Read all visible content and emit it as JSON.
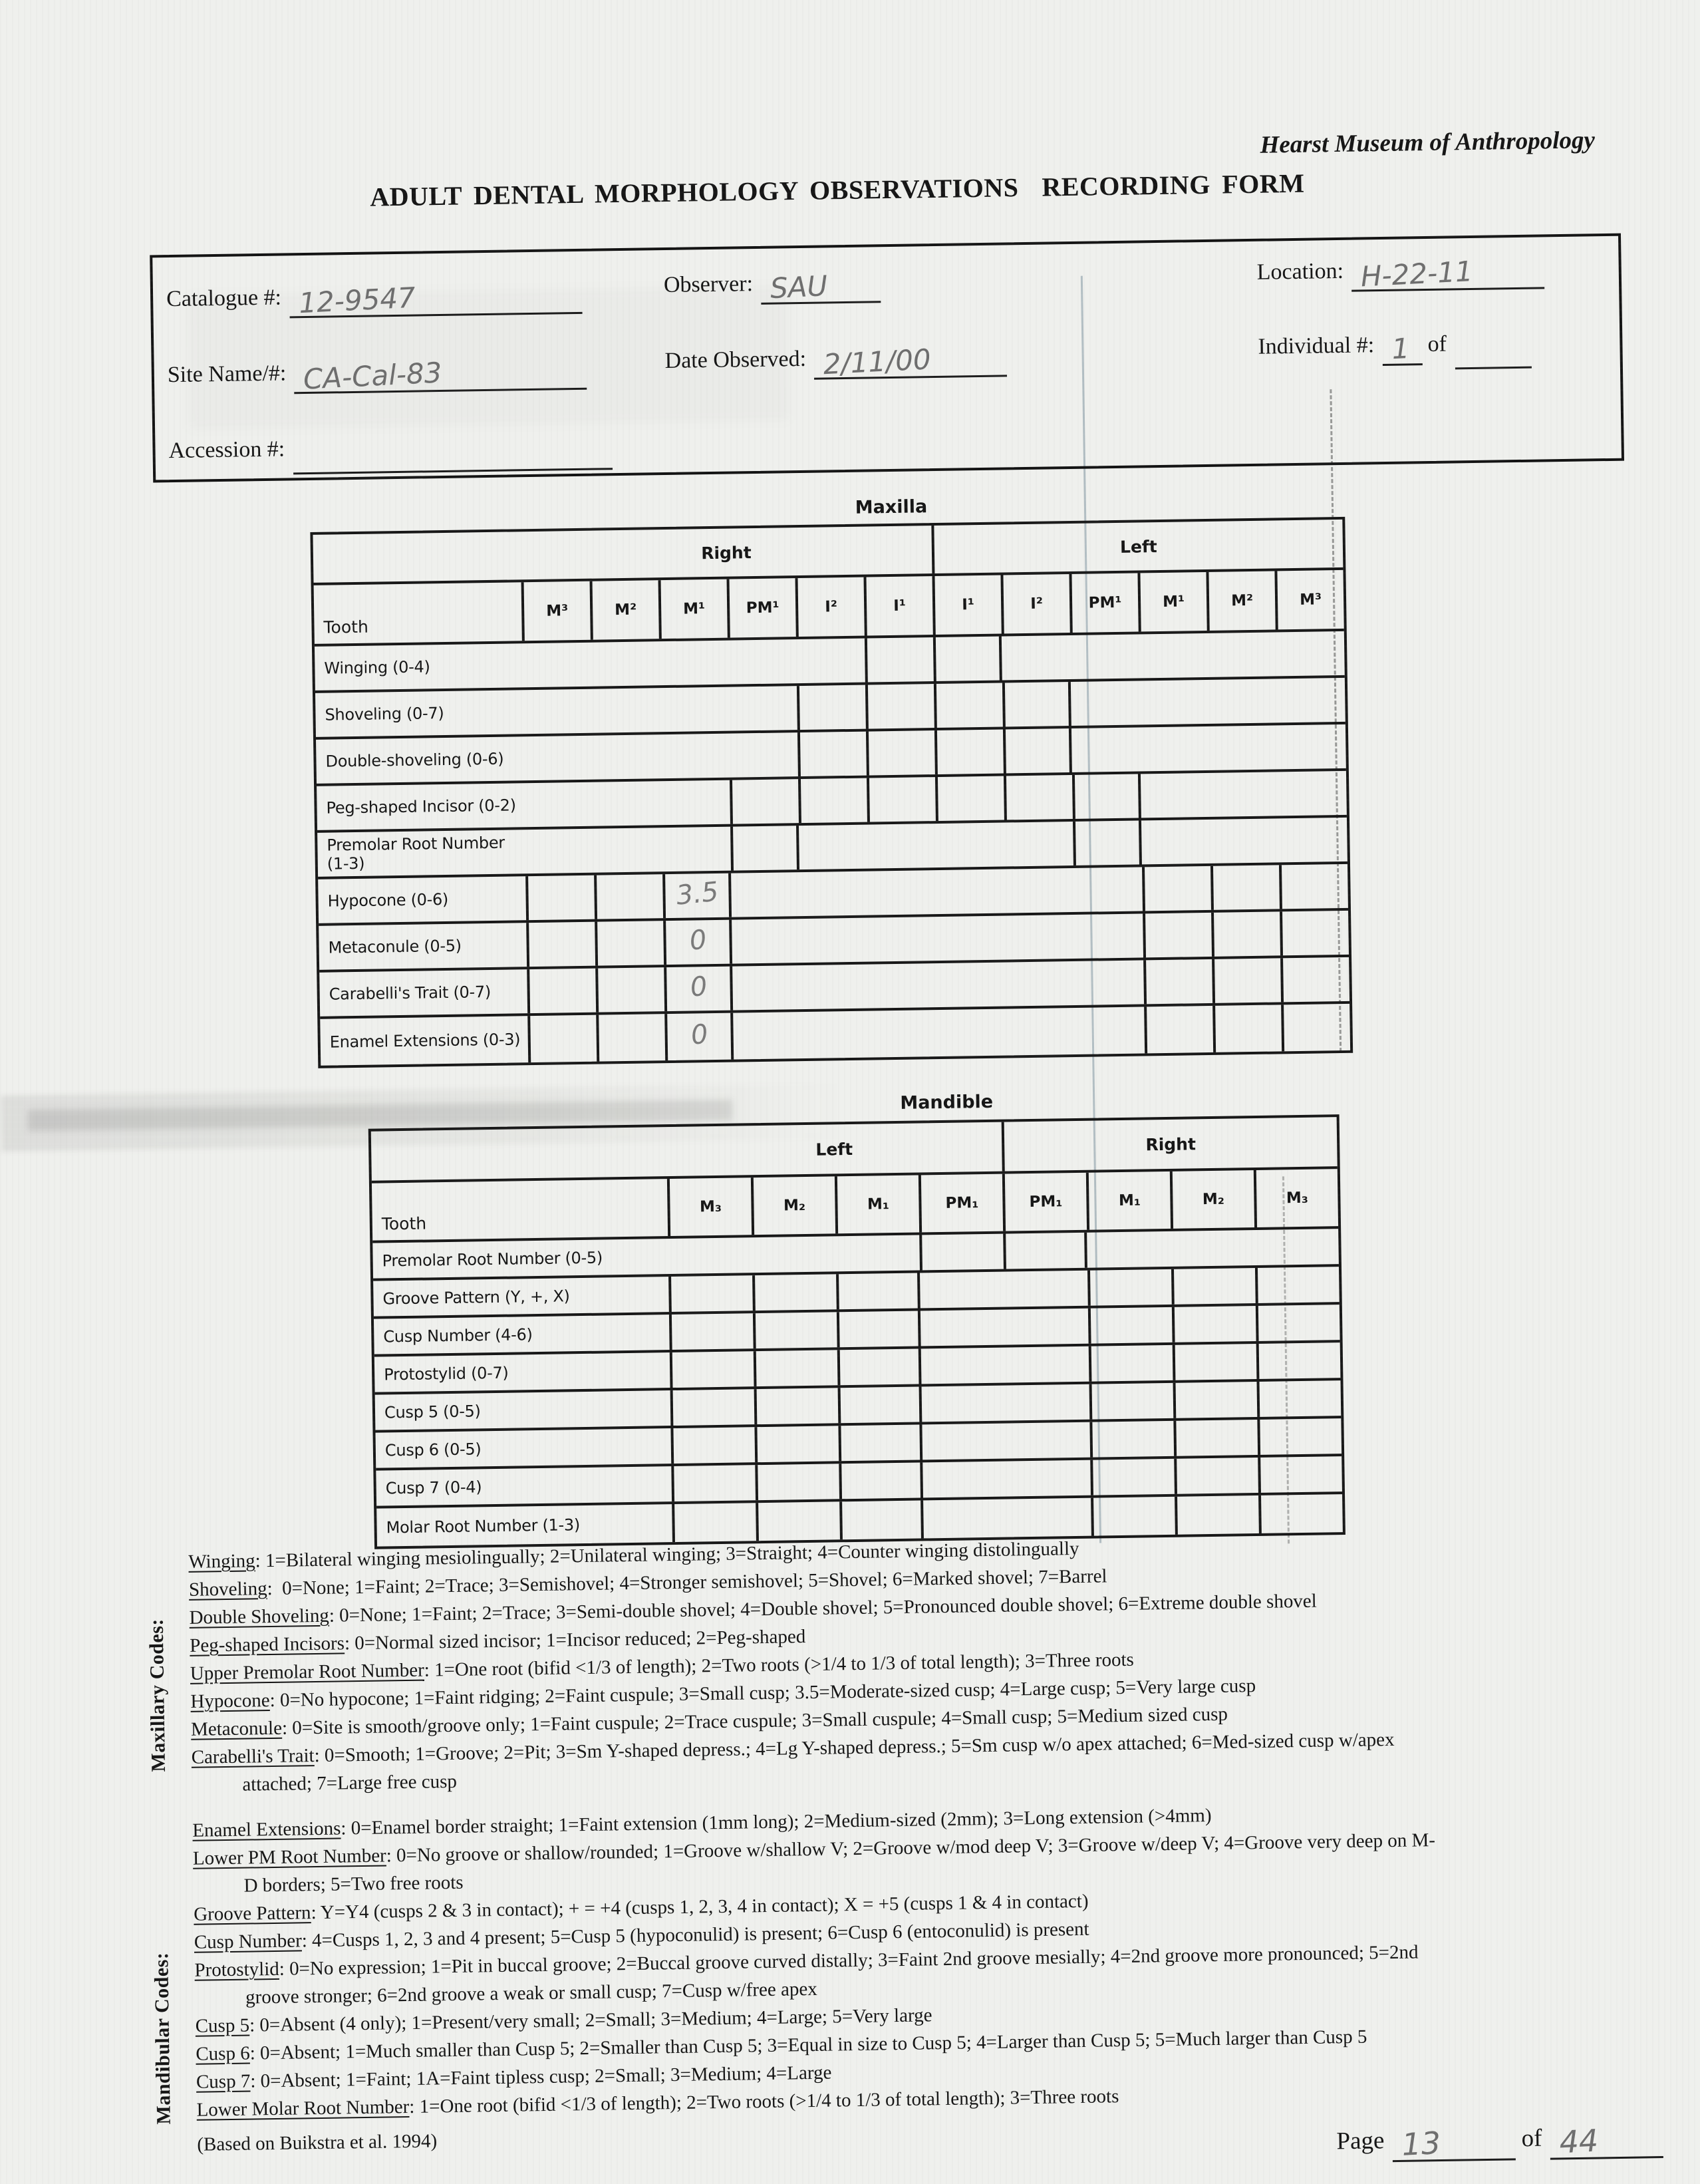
{
  "page": {
    "museum": "Hearst Museum of Anthropology",
    "title": "ADULT DENTAL MORPHOLOGY OBSERVATIONS  RECORDING FORM",
    "footer_source": "(Based on Buikstra et al. 1994)",
    "page_label": "Page",
    "page_of": "of",
    "page_number": "13",
    "page_total": "44"
  },
  "info_box": {
    "fields": [
      {
        "label": "Catalogue #:",
        "value": "12-9547"
      },
      {
        "label": "Observer:",
        "value": "SAU"
      },
      {
        "label": "Location:",
        "value": "H-22-11"
      },
      {
        "label": "Site Name/#:",
        "value": "CA-Cal-83"
      },
      {
        "label": "Date Observed:",
        "value": "2/11/00"
      },
      {
        "label": "Individual #:",
        "value": "1",
        "suffix": "of",
        "value2": ""
      },
      {
        "label": "Accession #:",
        "value": ""
      }
    ]
  },
  "maxilla": {
    "title": "Maxilla",
    "side_headers": [
      "Right",
      "Left"
    ],
    "tooth_label": "Tooth",
    "columns": [
      "M³",
      "M²",
      "M¹",
      "PM¹",
      "I²",
      "I¹",
      "I¹",
      "I²",
      "PM¹",
      "M¹",
      "M²",
      "M³"
    ],
    "rows": [
      {
        "label": "Winging (0-4)",
        "active": [
          5,
          6
        ],
        "values": {}
      },
      {
        "label": "Shoveling (0-7)",
        "active": [
          4,
          5,
          6,
          7
        ],
        "values": {}
      },
      {
        "label": "Double-shoveling (0-6)",
        "active": [
          4,
          5,
          6,
          7
        ],
        "values": {}
      },
      {
        "label": "Peg-shaped Incisor (0-2)",
        "active": [
          3,
          4,
          5,
          6,
          7,
          8
        ],
        "values": {}
      },
      {
        "label": "Premolar Root Number (1-3)",
        "active": [
          3,
          8
        ],
        "values": {}
      },
      {
        "label": "Hypocone (0-6)",
        "active": [
          0,
          1,
          2,
          9,
          10,
          11
        ],
        "values": {
          "2": "3.5"
        }
      },
      {
        "label": "Metaconule (0-5)",
        "active": [
          0,
          1,
          2,
          9,
          10,
          11
        ],
        "values": {
          "2": "0"
        }
      },
      {
        "label": "Carabelli's Trait (0-7)",
        "active": [
          0,
          1,
          2,
          9,
          10,
          11
        ],
        "values": {
          "2": "0"
        }
      },
      {
        "label": "Enamel Extensions (0-3)",
        "active": [
          0,
          1,
          2,
          9,
          10,
          11
        ],
        "values": {
          "2": "0"
        }
      }
    ]
  },
  "mandible": {
    "title": "Mandible",
    "side_headers": [
      "Left",
      "Right"
    ],
    "tooth_label": "Tooth",
    "columns": [
      "M₃",
      "M₂",
      "M₁",
      "PM₁",
      "PM₁",
      "M₁",
      "M₂",
      "M₃"
    ],
    "rows": [
      {
        "label": "Premolar Root Number (0-5)",
        "active": [
          3,
          4
        ],
        "values": {}
      },
      {
        "label": "Groove Pattern (Y, +, X)",
        "active": [
          0,
          1,
          2,
          5,
          6,
          7
        ],
        "values": {}
      },
      {
        "label": "Cusp Number (4-6)",
        "active": [
          0,
          1,
          2,
          5,
          6,
          7
        ],
        "values": {}
      },
      {
        "label": "Protostylid (0-7)",
        "active": [
          0,
          1,
          2,
          5,
          6,
          7
        ],
        "values": {}
      },
      {
        "label": "Cusp 5 (0-5)",
        "active": [
          0,
          1,
          2,
          5,
          6,
          7
        ],
        "values": {}
      },
      {
        "label": "Cusp 6 (0-5)",
        "active": [
          0,
          1,
          2,
          5,
          6,
          7
        ],
        "values": {}
      },
      {
        "label": "Cusp 7 (0-4)",
        "active": [
          0,
          1,
          2,
          5,
          6,
          7
        ],
        "values": {}
      },
      {
        "label": "Molar Root Number (1-3)",
        "active": [
          0,
          1,
          2,
          5,
          6,
          7
        ],
        "values": {}
      }
    ]
  },
  "maxillary_codes": {
    "label": "Maxillary Codes:",
    "lines": [
      {
        "term": "Winging",
        "text": ": 1=Bilateral winging mesiolingually; 2=Unilateral winging; 3=Straight; 4=Counter winging distolingually"
      },
      {
        "term": "Shoveling",
        "text": ":  0=None; 1=Faint; 2=Trace; 3=Semishovel; 4=Stronger semishovel; 5=Shovel; 6=Marked shovel; 7=Barrel"
      },
      {
        "term": "Double Shoveling",
        "text": ": 0=None; 1=Faint; 2=Trace; 3=Semi-double shovel; 4=Double shovel; 5=Pronounced double shovel; 6=Extreme double shovel"
      },
      {
        "term": "Peg-shaped Incisors",
        "text": ": 0=Normal sized incisor; 1=Incisor reduced; 2=Peg-shaped"
      },
      {
        "term": "Upper Premolar Root Number",
        "text": ": 1=One root (bifid <1/3 of length); 2=Two roots (>1/4 to 1/3 of total length); 3=Three roots"
      },
      {
        "term": "Hypocone",
        "text": ": 0=No hypocone; 1=Faint ridging; 2=Faint cuspule; 3=Small cusp; 3.5=Moderate-sized cusp; 4=Large cusp; 5=Very large cusp"
      },
      {
        "term": "Metaconule",
        "text": ": 0=Site is smooth/groove only; 1=Faint cuspule; 2=Trace cuspule; 3=Small cuspule; 4=Small cusp; 5=Medium sized cusp"
      },
      {
        "term": "Carabelli's Trait",
        "text": ": 0=Smooth; 1=Groove; 2=Pit; 3=Sm Y-shaped depress.; 4=Lg Y-shaped depress.; 5=Sm cusp w/o apex attached; 6=Med-sized cusp w/apex",
        "indent": false
      },
      {
        "term": "",
        "text": "attached; 7=Large free cusp",
        "indent": true
      },
      {
        "term": "Enamel Extensions",
        "text": ": 0=Enamel border straight; 1=Faint extension (1mm long); 2=Medium-sized (2mm); 3=Long extension (>4mm)",
        "gap": true
      }
    ]
  },
  "mandibular_codes": {
    "label": "Mandibular Codes:",
    "lines": [
      {
        "term": "Lower PM Root Number",
        "text": ": 0=No groove or shallow/rounded; 1=Groove w/shallow V; 2=Groove w/mod deep V; 3=Groove w/deep V; 4=Groove very deep on M-"
      },
      {
        "term": "",
        "text": "D borders; 5=Two free roots",
        "indent": true
      },
      {
        "term": "Groove Pattern",
        "text": ": Y=Y4 (cusps 2 & 3 in contact); + = +4 (cusps 1, 2, 3, 4 in contact); X = +5 (cusps 1 & 4 in contact)"
      },
      {
        "term": "Cusp Number",
        "text": ": 4=Cusps 1, 2, 3 and 4 present; 5=Cusp 5 (hypoconulid) is present; 6=Cusp 6 (entoconulid) is present"
      },
      {
        "term": "Protostylid",
        "text": ": 0=No expression; 1=Pit in buccal groove; 2=Buccal groove curved distally; 3=Faint 2nd groove mesially; 4=2nd groove more pronounced; 5=2nd"
      },
      {
        "term": "",
        "text": "groove stronger; 6=2nd groove a weak or small cusp; 7=Cusp w/free apex",
        "indent": true
      },
      {
        "term": "Cusp 5",
        "text": ": 0=Absent (4 only); 1=Present/very small; 2=Small; 3=Medium; 4=Large; 5=Very large"
      },
      {
        "term": "Cusp 6",
        "text": ": 0=Absent; 1=Much smaller than Cusp 5; 2=Smaller than Cusp 5; 3=Equal in size to Cusp 5; 4=Larger than Cusp 5; 5=Much larger than Cusp 5"
      },
      {
        "term": "Cusp 7",
        "text": ": 0=Absent; 1=Faint; 1A=Faint tipless cusp; 2=Small; 3=Medium; 4=Large"
      },
      {
        "term": "Lower Molar Root Number",
        "text": ": 1=One root (bifid <1/3 of length); 2=Two roots (>1/4 to 1/3 of total length); 3=Three roots"
      }
    ]
  }
}
